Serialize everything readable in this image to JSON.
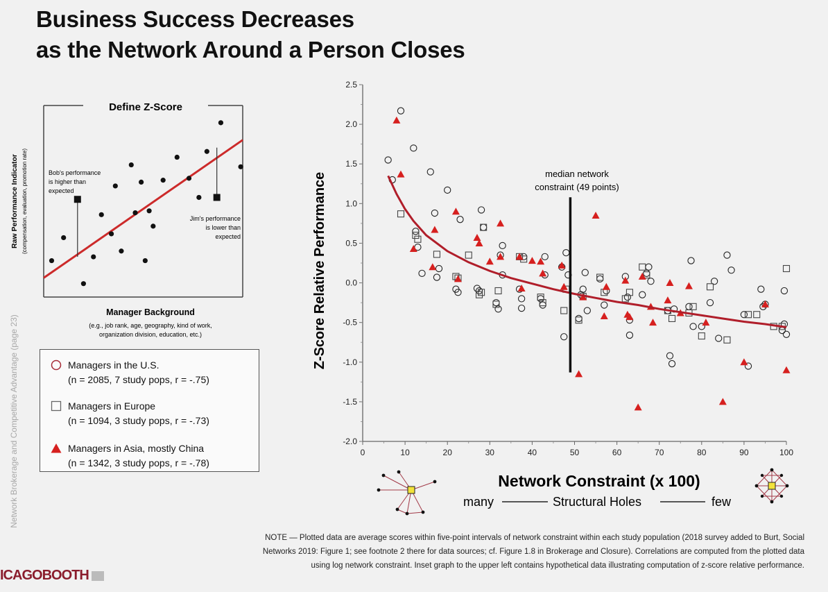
{
  "page": {
    "title_line1": "Business Success Decreases",
    "title_line2": "as the Network Around a Person Closes",
    "side_text": "Network Brokerage and Competitive Advantage (page 23)",
    "logo_left": "ICAGO",
    "logo_right": "BOOTH",
    "note_line1": "NOTE — Plotted data are average scores within five-point intervals of network constraint within each study population (2018 survey added to Burt, Social",
    "note_line2": "Networks 2019: Figure 1; see footnote 2 there for data sources; cf. Figure 1.8 in Brokerage and Closure). Correlations are computed from the plotted data",
    "note_line3": "using log network constraint.  Inset graph to the upper left contains hypothetical data illustrating computation of z-score relative performance."
  },
  "legend": {
    "items": [
      {
        "label": "Managers in the U.S.",
        "sub": "(n = 2085, 7 study pops, r = -.75)",
        "symbol": "circle-icon"
      },
      {
        "label": "Managers in Europe",
        "sub": "(n = 1094, 3 study pops, r = -.73)",
        "symbol": "square-icon"
      },
      {
        "label": "Managers in Asia, mostly China",
        "sub": "(n = 1342, 3 study pops, r = -.78)",
        "symbol": "triangle-icon"
      }
    ]
  },
  "chart_data": [
    {
      "type": "scatter",
      "title": "Define Z-Score",
      "xlabel": "Manager Background",
      "xlabel_sub1": "(e.g., job rank, age, geography, kind of work,",
      "xlabel_sub2": "organization division, education, etc.)",
      "ylabel": "Raw Performance Indicator",
      "ylabel_sub": "(compensation, evaluation, promotion rate)",
      "xlim": [
        0,
        100
      ],
      "ylim": [
        0,
        100
      ],
      "regression_line": [
        [
          0,
          10
        ],
        [
          100,
          82
        ]
      ],
      "regression_color": "#cc2a2a",
      "points": [
        [
          4,
          19
        ],
        [
          10,
          31
        ],
        [
          20,
          7
        ],
        [
          25,
          21
        ],
        [
          29,
          43
        ],
        [
          34,
          33
        ],
        [
          36,
          58
        ],
        [
          39,
          24
        ],
        [
          44,
          69
        ],
        [
          46,
          44
        ],
        [
          49,
          60
        ],
        [
          51,
          19
        ],
        [
          53,
          45
        ],
        [
          55,
          37
        ],
        [
          60,
          61
        ],
        [
          67,
          73
        ],
        [
          73,
          62
        ],
        [
          78,
          52
        ],
        [
          82,
          76
        ],
        [
          89,
          91
        ],
        [
          99,
          68
        ]
      ],
      "annotations": [
        {
          "text1": "Bob's performance",
          "text2": "is higher than",
          "text3": "expected",
          "point": [
            17,
            51
          ],
          "line_to": [
            17,
            21
          ]
        },
        {
          "text1": "Jim's performance",
          "text2": "is lower than",
          "text3": "expected",
          "point": [
            87,
            52
          ],
          "line_to": [
            87,
            78
          ]
        }
      ]
    },
    {
      "type": "scatter",
      "title": "",
      "xlabel": "Network Constraint (x 100)",
      "ylabel": "Z-Score Relative Performance",
      "xlim": [
        0,
        100
      ],
      "ylim": [
        -2.0,
        2.5
      ],
      "x_ticks": [
        0,
        10,
        20,
        30,
        40,
        50,
        60,
        70,
        80,
        90,
        100
      ],
      "y_ticks": [
        -2.0,
        -1.5,
        -1.0,
        -0.5,
        0.0,
        0.5,
        1.0,
        1.5,
        2.0,
        2.5
      ],
      "y_tick_labels": [
        "-2.0",
        "-1.5",
        "-1.0",
        "-0.5",
        "0.0",
        "0.5",
        "1.0",
        "1.5",
        "2.0",
        "2.5"
      ],
      "grid": false,
      "median_label1": "median network",
      "median_label2": "constraint (49 points)",
      "median_x": 49,
      "median_y_range": [
        -1.13,
        1.08
      ],
      "fit_curve_color": "#b01e2a",
      "fit_curve": [
        [
          6,
          1.35
        ],
        [
          8,
          1.12
        ],
        [
          10,
          0.93
        ],
        [
          12,
          0.78
        ],
        [
          15,
          0.6
        ],
        [
          20,
          0.4
        ],
        [
          25,
          0.26
        ],
        [
          30,
          0.15
        ],
        [
          35,
          0.06
        ],
        [
          40,
          -0.01
        ],
        [
          45,
          -0.08
        ],
        [
          50,
          -0.14
        ],
        [
          55,
          -0.19
        ],
        [
          60,
          -0.24
        ],
        [
          65,
          -0.28
        ],
        [
          70,
          -0.33
        ],
        [
          75,
          -0.37
        ],
        [
          80,
          -0.41
        ],
        [
          85,
          -0.45
        ],
        [
          90,
          -0.49
        ],
        [
          95,
          -0.52
        ],
        [
          100,
          -0.56
        ]
      ],
      "bottom_left_label": "many",
      "bottom_mid_label": "Structural Holes",
      "bottom_right_label": "few",
      "series": [
        {
          "name": "Managers in the U.S.",
          "marker": "circle",
          "points": [
            [
              6,
              1.55
            ],
            [
              7,
              1.3
            ],
            [
              9,
              2.17
            ],
            [
              12,
              1.7
            ],
            [
              12.5,
              0.65
            ],
            [
              13,
              0.45
            ],
            [
              14,
              0.12
            ],
            [
              16,
              1.4
            ],
            [
              17,
              0.88
            ],
            [
              17.5,
              0.07
            ],
            [
              18,
              0.18
            ],
            [
              20,
              1.17
            ],
            [
              22,
              -0.08
            ],
            [
              22.5,
              -0.12
            ],
            [
              23,
              0.8
            ],
            [
              27,
              -0.07
            ],
            [
              27.5,
              -0.1
            ],
            [
              28,
              0.92
            ],
            [
              28.5,
              0.7
            ],
            [
              31.5,
              -0.25
            ],
            [
              32,
              -0.33
            ],
            [
              32.5,
              0.35
            ],
            [
              33,
              0.47
            ],
            [
              33,
              0.1
            ],
            [
              37,
              -0.08
            ],
            [
              37.5,
              -0.32
            ],
            [
              37.5,
              -0.2
            ],
            [
              38,
              0.33
            ],
            [
              42,
              -0.2
            ],
            [
              42.5,
              -0.28
            ],
            [
              43,
              0.1
            ],
            [
              43,
              0.33
            ],
            [
              47,
              0.2
            ],
            [
              47.5,
              -0.68
            ],
            [
              48,
              0.38
            ],
            [
              48.5,
              0.1
            ],
            [
              51,
              -0.45
            ],
            [
              51.5,
              -0.15
            ],
            [
              52,
              -0.08
            ],
            [
              52.5,
              0.13
            ],
            [
              53,
              -0.35
            ],
            [
              56,
              0.05
            ],
            [
              57,
              -0.28
            ],
            [
              57.5,
              -0.1
            ],
            [
              62,
              0.08
            ],
            [
              62.5,
              -0.18
            ],
            [
              63,
              -0.47
            ],
            [
              63,
              -0.66
            ],
            [
              66,
              -0.15
            ],
            [
              67,
              0.12
            ],
            [
              67.5,
              0.2
            ],
            [
              68,
              0.02
            ],
            [
              72,
              -0.35
            ],
            [
              72.5,
              -0.92
            ],
            [
              73,
              -1.02
            ],
            [
              73.5,
              -0.33
            ],
            [
              77,
              -0.3
            ],
            [
              77.5,
              0.28
            ],
            [
              78,
              -0.55
            ],
            [
              80,
              -0.55
            ],
            [
              82,
              -0.25
            ],
            [
              83,
              0.02
            ],
            [
              84,
              -0.7
            ],
            [
              86,
              0.35
            ],
            [
              87,
              0.16
            ],
            [
              90,
              -0.4
            ],
            [
              91,
              -1.05
            ],
            [
              94,
              -0.08
            ],
            [
              94.5,
              -0.3
            ],
            [
              95,
              -0.27
            ],
            [
              99,
              -0.6
            ],
            [
              99.5,
              -0.52
            ],
            [
              99.5,
              -0.1
            ],
            [
              100,
              -0.65
            ]
          ]
        },
        {
          "name": "Managers in Europe",
          "marker": "square",
          "points": [
            [
              9,
              0.87
            ],
            [
              12.5,
              0.6
            ],
            [
              13,
              0.55
            ],
            [
              17.5,
              0.36
            ],
            [
              22,
              0.08
            ],
            [
              22.5,
              0.06
            ],
            [
              25,
              0.35
            ],
            [
              27.5,
              -0.15
            ],
            [
              28,
              -0.12
            ],
            [
              28.5,
              0.7
            ],
            [
              31.5,
              -0.27
            ],
            [
              32,
              -0.1
            ],
            [
              37,
              0.33
            ],
            [
              38,
              0.3
            ],
            [
              42,
              -0.18
            ],
            [
              42.5,
              -0.25
            ],
            [
              47.5,
              -0.35
            ],
            [
              48,
              -0.08
            ],
            [
              51,
              -0.47
            ],
            [
              52,
              -0.17
            ],
            [
              56,
              0.07
            ],
            [
              57,
              -0.12
            ],
            [
              62,
              -0.2
            ],
            [
              63,
              -0.12
            ],
            [
              66,
              0.2
            ],
            [
              67,
              0.1
            ],
            [
              72,
              -0.35
            ],
            [
              73,
              -0.45
            ],
            [
              77,
              -0.38
            ],
            [
              78,
              -0.3
            ],
            [
              80,
              -0.67
            ],
            [
              82,
              -0.05
            ],
            [
              86,
              -0.72
            ],
            [
              91,
              -0.4
            ],
            [
              93,
              -0.4
            ],
            [
              97,
              -0.55
            ],
            [
              99,
              -0.55
            ],
            [
              100,
              0.18
            ]
          ]
        },
        {
          "name": "Managers in Asia, mostly China",
          "marker": "triangle",
          "points": [
            [
              8,
              2.05
            ],
            [
              9,
              1.37
            ],
            [
              12,
              0.43
            ],
            [
              16.5,
              0.2
            ],
            [
              17,
              0.67
            ],
            [
              22,
              0.9
            ],
            [
              22.5,
              0.05
            ],
            [
              27,
              0.57
            ],
            [
              27.5,
              0.5
            ],
            [
              30,
              0.27
            ],
            [
              32.5,
              0.33
            ],
            [
              32.5,
              0.75
            ],
            [
              37,
              0.33
            ],
            [
              37.5,
              -0.07
            ],
            [
              40,
              0.28
            ],
            [
              42,
              0.27
            ],
            [
              42.5,
              0.12
            ],
            [
              47,
              0.22
            ],
            [
              47.5,
              -0.05
            ],
            [
              51,
              -1.15
            ],
            [
              52,
              -0.18
            ],
            [
              55,
              0.85
            ],
            [
              57,
              -0.42
            ],
            [
              57.5,
              -0.05
            ],
            [
              62,
              0.03
            ],
            [
              62.5,
              -0.4
            ],
            [
              63,
              -0.43
            ],
            [
              65,
              -1.57
            ],
            [
              66,
              0.08
            ],
            [
              68,
              -0.3
            ],
            [
              68.5,
              -0.5
            ],
            [
              72,
              -0.22
            ],
            [
              72.5,
              0.0
            ],
            [
              75,
              -0.38
            ],
            [
              77,
              -0.04
            ],
            [
              81,
              -0.5
            ],
            [
              85,
              -1.5
            ],
            [
              90,
              -1.0
            ],
            [
              95,
              -0.27
            ],
            [
              100,
              -1.1
            ]
          ]
        }
      ]
    }
  ]
}
